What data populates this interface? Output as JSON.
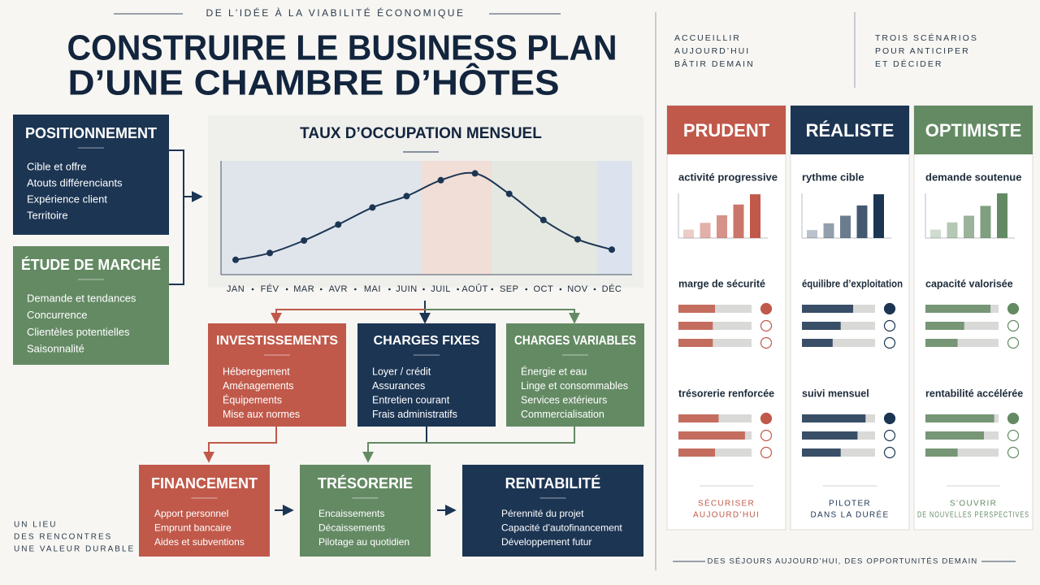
{
  "header": {
    "kicker": "DE L’IDÉE À LA VIABILITÉ ÉCONOMIQUE",
    "title_lines": [
      "CONSTRUIRE LE BUSINESS PLAN",
      "D’UNE CHAMBRE D’HÔTES"
    ]
  },
  "left_boxes": [
    {
      "title": "POSITIONNEMENT",
      "color": "#1c3553",
      "items": [
        "Cible et offre",
        "Atouts différenciants",
        "Expérience client",
        "Territoire"
      ]
    },
    {
      "title": "ÉTUDE DE MARCHÉ",
      "color": "#648a64",
      "items": [
        "Demande et tendances",
        "Concurrence",
        "Clientèles potentielles",
        "Saisonnalité"
      ]
    }
  ],
  "chart_data": {
    "type": "line",
    "title": "TAUX D’OCCUPATION MENSUEL",
    "categories": [
      "JAN",
      "FÉV",
      "MAR",
      "AVR",
      "MAI",
      "JUIN",
      "JUIL",
      "AOÛT",
      "SEP",
      "OCT",
      "NOV",
      "DÉC"
    ],
    "values": [
      13,
      19,
      30,
      44,
      59,
      69,
      83,
      89,
      71,
      48,
      31,
      22
    ],
    "ylim": [
      0,
      100
    ],
    "color": "#1c3553"
  },
  "cost_boxes": [
    {
      "title": "INVESTISSEMENTS",
      "color": "#c0594a",
      "items": [
        "Héberegement",
        "Aménagements",
        "Équipements",
        "Mise aux normes"
      ]
    },
    {
      "title": "CHARGES FIXES",
      "color": "#1c3553",
      "items": [
        "Loyer / crédit",
        "Assurances",
        "Entretien courant",
        "Frais administratifs"
      ]
    },
    {
      "title": "CHARGES VARIABLES",
      "color": "#648a64",
      "items": [
        "Énergie et eau",
        "Linge et consommables",
        "Services extérieurs",
        "Commercialisation"
      ]
    }
  ],
  "result_boxes": [
    {
      "title": "FINANCEMENT",
      "color": "#c0594a",
      "items": [
        "Apport personnel",
        "Emprunt bancaire",
        "Aides et subventions"
      ]
    },
    {
      "title": "TRÉSORERIE",
      "color": "#648a64",
      "items": [
        "Encaissements",
        "Décaissements",
        "Pilotage au quotidien"
      ]
    },
    {
      "title": "RENTABILITÉ",
      "color": "#1c3553",
      "items": [
        "Pérennité du projet",
        "Capacité d’autofinancement",
        "Développement futur"
      ]
    }
  ],
  "tagline": [
    "UN LIEU",
    "DES RENCONTRES",
    "UNE VALEUR DURABLE"
  ],
  "scenario_intro": {
    "left": [
      "ACCUEILLIR",
      "AUJOURD’HUI",
      "BÂTIR DEMAIN"
    ],
    "right": [
      "TROIS SCÉNARIOS",
      "POUR ANTICIPER",
      "ET DÉCIDER"
    ]
  },
  "scenarios": [
    {
      "title": "PRUDENT",
      "color": "#c0594a",
      "growth": {
        "label": "activité progressive",
        "values": [
          19,
          34,
          51,
          75,
          98
        ],
        "ylim": [
          0,
          100
        ]
      },
      "margin": {
        "label": "marge de sécurité",
        "values": [
          50,
          47,
          47
        ],
        "status": [
          true,
          false,
          false
        ]
      },
      "treasury": {
        "label": "trésorerie renforcée",
        "values": [
          55,
          91,
          50
        ],
        "status": [
          true,
          false,
          false
        ]
      },
      "xlim": [
        0,
        100
      ],
      "footer": [
        "SÉCURISER",
        "AUJOURD’HUI"
      ]
    },
    {
      "title": "RÉALISTE",
      "color": "#1c3553",
      "growth": {
        "label": "rythme cible",
        "values": [
          18,
          33,
          50,
          73,
          98
        ],
        "ylim": [
          0,
          100
        ]
      },
      "margin": {
        "label": "équilibre d’exploitation",
        "values": [
          70,
          53,
          42
        ],
        "status": [
          true,
          false,
          false
        ]
      },
      "treasury": {
        "label": "suivi mensuel",
        "values": [
          87,
          76,
          53
        ],
        "status": [
          true,
          false,
          false
        ]
      },
      "xlim": [
        0,
        100
      ],
      "footer": [
        "PILOTER",
        "DANS LA DURÉE"
      ]
    },
    {
      "title": "OPTIMISTE",
      "color": "#648a64",
      "growth": {
        "label": "demande soutenue",
        "values": [
          19,
          35,
          50,
          72,
          100
        ],
        "ylim": [
          0,
          100
        ]
      },
      "margin": {
        "label": "capacité valorisée",
        "values": [
          89,
          53,
          44
        ],
        "status": [
          true,
          false,
          false
        ]
      },
      "treasury": {
        "label": "rentabilité accélérée",
        "values": [
          94,
          80,
          44
        ],
        "status": [
          true,
          false,
          false
        ]
      },
      "xlim": [
        0,
        100
      ],
      "footer": [
        "S’OUVRIR",
        "DE NOUVELLES PERSPECTIVES"
      ]
    }
  ],
  "closing": "DES SÉJOURS AUJOURD’HUI, DES OPPORTUNITÉS DEMAIN"
}
